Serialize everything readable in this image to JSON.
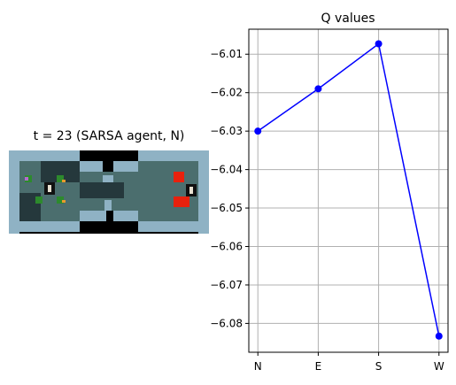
{
  "game": {
    "title": "t = 23 (SARSA agent, N)",
    "colors": {
      "wall": "#8fb2c4",
      "floor": "#4b6e6e",
      "void": "#000000",
      "lava": "#e8210d",
      "agent_bg": "#111111"
    }
  },
  "chart_data": {
    "type": "line",
    "title": "Q values",
    "categories": [
      "N",
      "E",
      "S",
      "W"
    ],
    "series": [
      {
        "values": [
          -6.03,
          -6.019,
          -6.0073,
          -6.0833
        ],
        "color": "#0000ff",
        "marker": "circle"
      }
    ],
    "xlabel": "",
    "ylabel": "",
    "ylim": [
      -6.0875,
      -6.0035
    ],
    "yticks": [
      -6.01,
      -6.02,
      -6.03,
      -6.04,
      -6.05,
      -6.06,
      -6.07,
      -6.08
    ],
    "ytick_labels": [
      "−6.01",
      "−6.02",
      "−6.03",
      "−6.04",
      "−6.05",
      "−6.06",
      "−6.07",
      "−6.08"
    ],
    "grid": true,
    "legend": "none"
  }
}
